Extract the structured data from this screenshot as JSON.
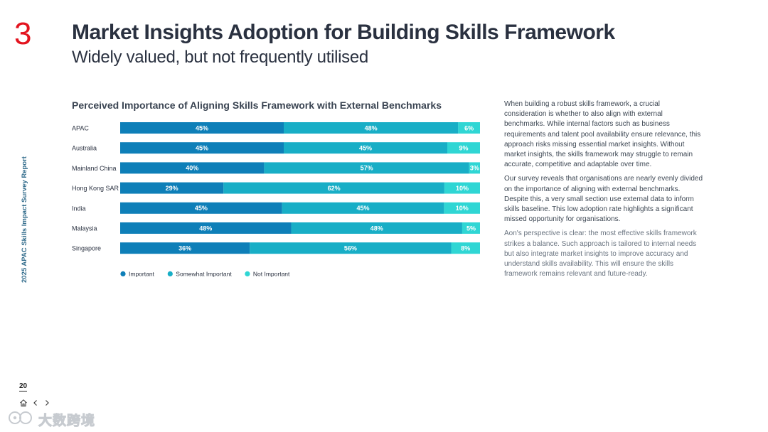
{
  "header": {
    "section_number": "3",
    "title": "Market Insights Adoption for Building Skills Framework",
    "subtitle": "Widely valued, but not frequently utilised"
  },
  "side_label": "2025 APAC Skills Impact Survey Report",
  "page_number": "20",
  "body_paragraphs": [
    "When building a robust skills framework, a crucial consideration is whether to also align with external benchmarks. While internal factors such as business requirements and talent pool availability ensure relevance, this approach risks missing essential market insights. Without market insights, the skills framework may struggle to remain accurate, competitive and adaptable over time.",
    "Our survey reveals that organisations are nearly evenly divided on the importance of aligning with external benchmarks. Despite this, a very small section use external data to inform skills baseline. This low adoption rate highlights a significant missed opportunity for organisations.",
    "Aon's perspective is clear: the most effective skills framework strikes a balance. Such approach is tailored to internal needs but also integrate market insights to improve accuracy and understand skills availability. This will ensure the skills framework remains relevant and future-ready."
  ],
  "watermark": "大数跨境",
  "icons": {
    "home": "home-icon",
    "prev": "chevron-left-icon",
    "next": "chevron-right-icon",
    "watermark": "watermark-logo-icon"
  },
  "colors": {
    "accent_red": "#e3141f",
    "important": "#0e7fb8",
    "somewhat_important": "#18aec6",
    "not_important": "#2fd6d4"
  },
  "chart_data": {
    "type": "bar",
    "orientation": "horizontal",
    "stacked": true,
    "title": "Perceived Importance of Aligning Skills Framework with External Benchmarks",
    "xlabel": "",
    "ylabel": "",
    "categories": [
      "APAC",
      "Australia",
      "Mainland China",
      "Hong Kong SAR",
      "India",
      "Malaysia",
      "Singapore"
    ],
    "series": [
      {
        "name": "Important",
        "values": [
          45,
          45,
          40,
          29,
          45,
          48,
          36
        ],
        "color": "#0e7fb8"
      },
      {
        "name": "Somewhat Important",
        "values": [
          48,
          45,
          57,
          62,
          45,
          48,
          56
        ],
        "color": "#18aec6"
      },
      {
        "name": "Not Important",
        "values": [
          6,
          9,
          3,
          10,
          10,
          5,
          8
        ],
        "color": "#2fd6d4"
      }
    ],
    "value_suffix": "%",
    "legend_position": "bottom-left",
    "grid": false
  }
}
